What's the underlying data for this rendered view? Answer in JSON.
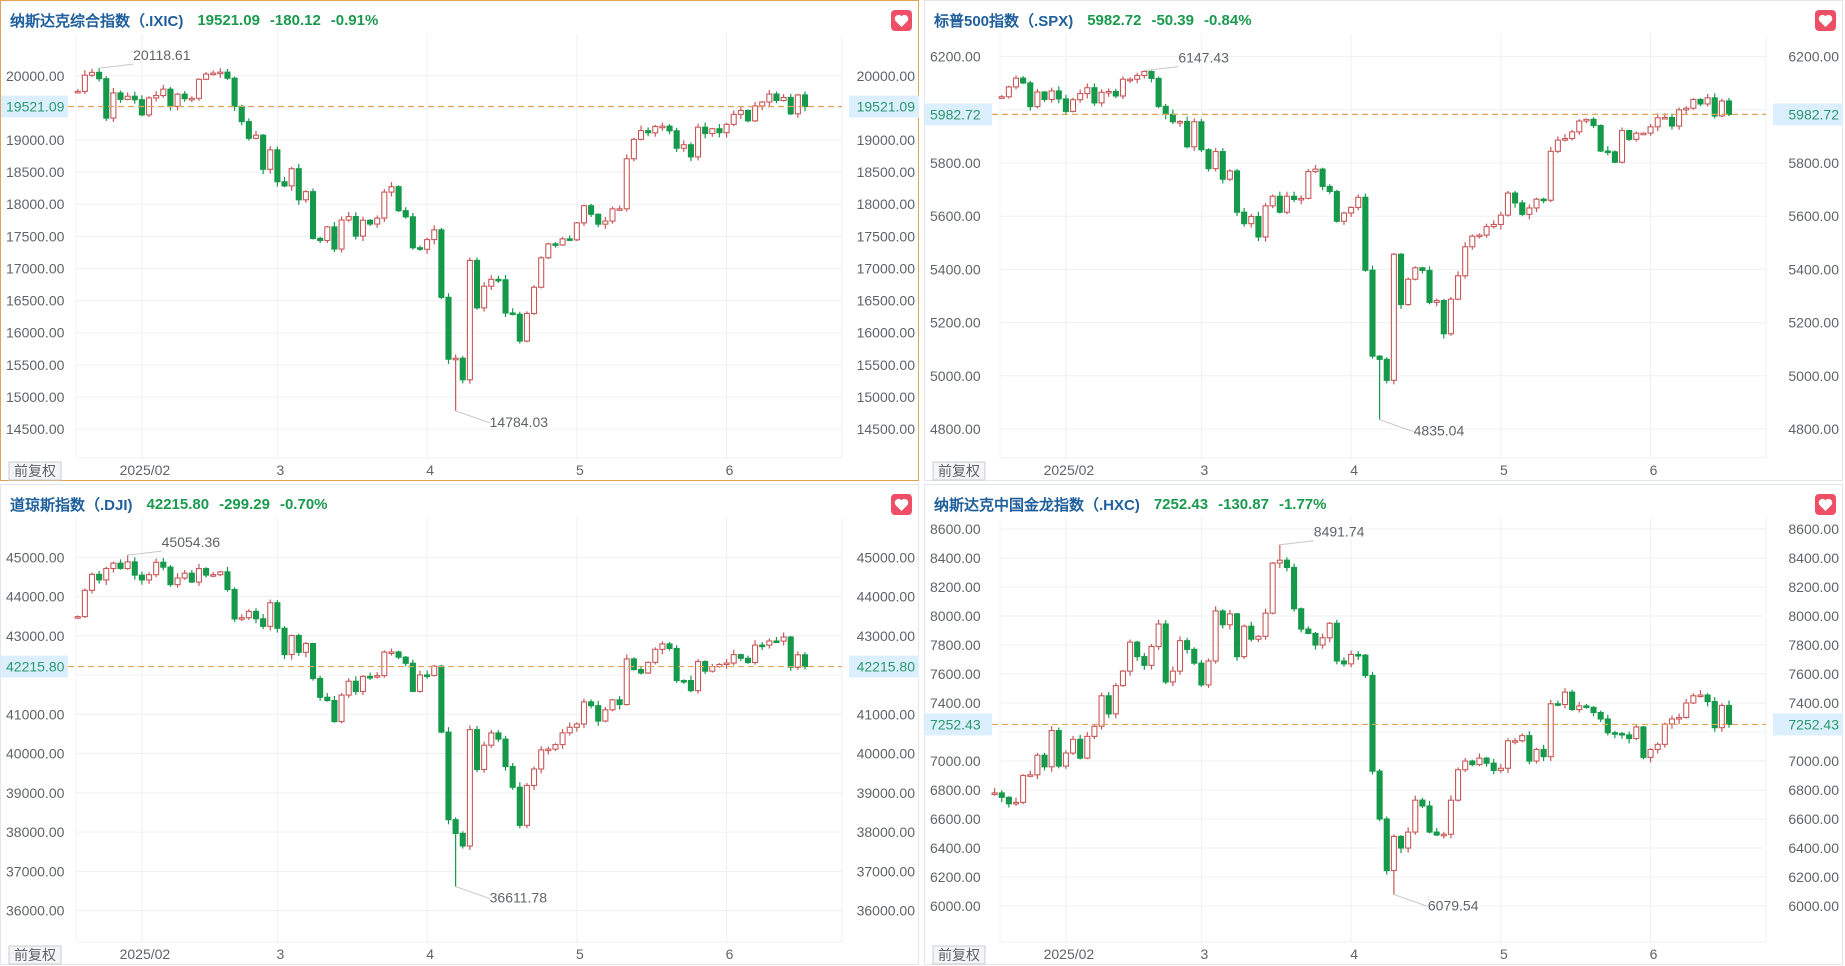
{
  "colors": {
    "up": "#c8595a",
    "down": "#15994a",
    "title": "#1f5f9c",
    "quote": "#1a9a4d",
    "price_line": "#e0a35a",
    "price_label_bg": "#dcefff",
    "price_label_text": "#2a9a6a",
    "grid": "#edf0f3"
  },
  "adjust_label": "前复权",
  "chart_data": [
    {
      "type": "candlestick",
      "title": "纳斯达克综合指数（.IXIC)",
      "last": "19521.09",
      "change": "-180.12",
      "change_pct": "-0.91%",
      "last_value": 19521.09,
      "ylim": [
        14050,
        20650
      ],
      "yticks": [
        14500,
        15000,
        15500,
        16000,
        16500,
        17000,
        17500,
        18000,
        18500,
        19000,
        19500,
        20000
      ],
      "xticks": [
        {
          "label": "2025/02",
          "index": 9
        },
        {
          "label": "3",
          "index": 28
        },
        {
          "label": "4",
          "index": 49
        },
        {
          "label": "5",
          "index": 70
        },
        {
          "label": "6",
          "index": 91
        }
      ],
      "max": {
        "value": 20118.61,
        "label": "20118.61",
        "index": 3
      },
      "min": {
        "value": 14784.03,
        "label": "14784.03",
        "index": 53
      },
      "close": [
        19757,
        20009,
        20053,
        19954,
        19341,
        19733,
        19632,
        19681,
        19627,
        19391,
        19654,
        19692,
        19791,
        19523,
        19714,
        19643,
        19649,
        19945,
        20026,
        20041,
        20056,
        19962,
        19524,
        19286,
        19026,
        19075,
        18544,
        18847,
        18350,
        18285,
        18553,
        18069,
        18196,
        17468,
        17436,
        17648,
        17303,
        17754,
        17808,
        17504,
        17751,
        17692,
        17784,
        18189,
        18272,
        17900,
        17804,
        17323,
        17299,
        17450,
        17601,
        16551,
        15588,
        15603,
        15268,
        17125,
        16387,
        16724,
        16831,
        16824,
        16307,
        16287,
        15870,
        16300,
        16708,
        17166,
        17383,
        17366,
        17461,
        17446,
        17710,
        17977,
        17844,
        17690,
        17738,
        17928,
        17929,
        18708,
        19010,
        19146,
        19112,
        19211,
        19215,
        19143,
        18872,
        18926,
        18737,
        19199,
        19101,
        19175,
        19114,
        19243,
        19399,
        19460,
        19298,
        19530,
        19591,
        19715,
        19615,
        19662,
        19407,
        19701.21,
        19521.09
      ]
    },
    {
      "type": "candlestick",
      "title": "标普500指数（.SPX)",
      "last": "5982.72",
      "change": "-50.39",
      "change_pct": "-0.84%",
      "last_value": 5982.72,
      "ylim": [
        4691,
        6285
      ],
      "yticks": [
        4800,
        5000,
        5200,
        5400,
        5600,
        5800,
        6000,
        6200
      ],
      "xticks": [
        {
          "label": "2025/02",
          "index": 9
        },
        {
          "label": "3",
          "index": 28
        },
        {
          "label": "4",
          "index": 49
        },
        {
          "label": "5",
          "index": 70
        },
        {
          "label": "6",
          "index": 91
        }
      ],
      "max": {
        "value": 6147.43,
        "label": "6147.43",
        "index": 20
      },
      "min": {
        "value": 4835.04,
        "label": "4835.04",
        "index": 53
      },
      "close": [
        6049,
        6086,
        6119,
        6101,
        6012,
        6067,
        6039,
        6071,
        6041,
        5994,
        6038,
        6061,
        6083,
        6026,
        6066,
        6069,
        6052,
        6115,
        6115,
        6129,
        6144,
        6118,
        6013,
        5983,
        5955,
        5956,
        5861,
        5955,
        5850,
        5779,
        5843,
        5739,
        5770,
        5615,
        5572,
        5599,
        5522,
        5639,
        5675,
        5615,
        5675,
        5663,
        5667,
        5768,
        5777,
        5712,
        5693,
        5581,
        5612,
        5633,
        5671,
        5397,
        5074,
        5062,
        4983,
        5457,
        5268,
        5363,
        5406,
        5396,
        5276,
        5283,
        5158,
        5288,
        5376,
        5485,
        5525,
        5529,
        5561,
        5569,
        5604,
        5687,
        5650,
        5607,
        5631,
        5664,
        5660,
        5844,
        5886,
        5892,
        5917,
        5958,
        5964,
        5941,
        5845,
        5842,
        5803,
        5922,
        5889,
        5912,
        5912,
        5936,
        5970,
        5971,
        5939,
        6000,
        6006,
        6039,
        6022,
        6045,
        5977,
        6033.11,
        5982.72
      ]
    },
    {
      "type": "candlestick",
      "title": "道琼斯指数（.DJI)",
      "last": "42215.80",
      "change": "-299.29",
      "change_pct": "-0.70%",
      "last_value": 42215.8,
      "ylim": [
        35200,
        46000
      ],
      "yticks": [
        36000,
        37000,
        38000,
        39000,
        40000,
        41000,
        42000,
        43000,
        44000,
        45000
      ],
      "xticks": [
        {
          "label": "2025/02",
          "index": 9
        },
        {
          "label": "3",
          "index": 28
        },
        {
          "label": "4",
          "index": 49
        },
        {
          "label": "5",
          "index": 70
        },
        {
          "label": "6",
          "index": 91
        }
      ],
      "max": {
        "value": 45054.36,
        "label": "45054.36",
        "index": 7
      },
      "min": {
        "value": 36611.78,
        "label": "36611.78",
        "index": 53
      },
      "close": [
        43488,
        44157,
        44565,
        44424,
        44714,
        44850,
        44714,
        44882,
        44545,
        44422,
        44556,
        44873,
        44748,
        44303,
        44471,
        44594,
        44369,
        44711,
        44546,
        44556,
        44628,
        44177,
        43428,
        43461,
        43621,
        43433,
        43240,
        43841,
        43191,
        42521,
        43007,
        42579,
        42802,
        41912,
        41433,
        41350,
        40814,
        41489,
        41842,
        41581,
        41965,
        41953,
        41985,
        42583,
        42588,
        42455,
        42300,
        41584,
        42002,
        41989,
        42226,
        40546,
        38315,
        37966,
        37646,
        40609,
        39594,
        40213,
        40525,
        40369,
        39669,
        39142,
        38171,
        39187,
        39607,
        40094,
        40114,
        40228,
        40528,
        40669,
        40753,
        41317,
        41219,
        40829,
        41114,
        41368,
        41249,
        42410,
        42140,
        42052,
        42323,
        42655,
        42792,
        42677,
        41860,
        41859,
        41603,
        42344,
        42098,
        42216,
        42270,
        42305,
        42520,
        42427,
        42319,
        42763,
        42762,
        42867,
        42865,
        42968,
        42197,
        42515.09,
        42215.8
      ]
    },
    {
      "type": "candlestick",
      "title": "纳斯达克中国金龙指数（.HXC)",
      "last": "7252.43",
      "change": "-130.87",
      "change_pct": "-1.77%",
      "last_value": 7252.43,
      "ylim": [
        5752,
        8676
      ],
      "yticks": [
        6000,
        6200,
        6400,
        6600,
        6800,
        7000,
        7200,
        7400,
        7600,
        7800,
        8000,
        8200,
        8400,
        8600
      ],
      "xticks": [
        {
          "label": "2025/02",
          "index": 10
        },
        {
          "label": "3",
          "index": 29
        },
        {
          "label": "4",
          "index": 50
        },
        {
          "label": "5",
          "index": 71
        },
        {
          "label": "6",
          "index": 92
        }
      ],
      "max": {
        "value": 8491.74,
        "label": "8491.74",
        "index": 40
      },
      "min": {
        "value": 6079.54,
        "label": "6079.54",
        "index": 56
      },
      "close": [
        6780,
        6750,
        6705,
        6715,
        6900,
        6905,
        7040,
        6960,
        7210,
        6965,
        7055,
        7150,
        7020,
        7170,
        7240,
        7450,
        7325,
        7520,
        7620,
        7820,
        7720,
        7660,
        7790,
        7945,
        7545,
        7620,
        7830,
        7770,
        7675,
        7525,
        7690,
        8035,
        7940,
        8015,
        7720,
        7930,
        7840,
        7860,
        8020,
        8365,
        8385,
        8335,
        8050,
        7910,
        7880,
        7800,
        7850,
        7950,
        7690,
        7670,
        7735,
        7730,
        7590,
        6930,
        6600,
        6245,
        6480,
        6400,
        6510,
        6730,
        6690,
        6510,
        6490,
        6495,
        6730,
        6940,
        7000,
        6975,
        7020,
        6985,
        6935,
        6950,
        7140,
        7140,
        7175,
        7000,
        7080,
        7030,
        7395,
        7390,
        7475,
        7355,
        7380,
        7370,
        7335,
        7290,
        7195,
        7190,
        7180,
        7155,
        7235,
        7025,
        7080,
        7115,
        7255,
        7290,
        7300,
        7400,
        7450,
        7455,
        7410,
        7230,
        7383.3,
        7252.43
      ]
    }
  ]
}
